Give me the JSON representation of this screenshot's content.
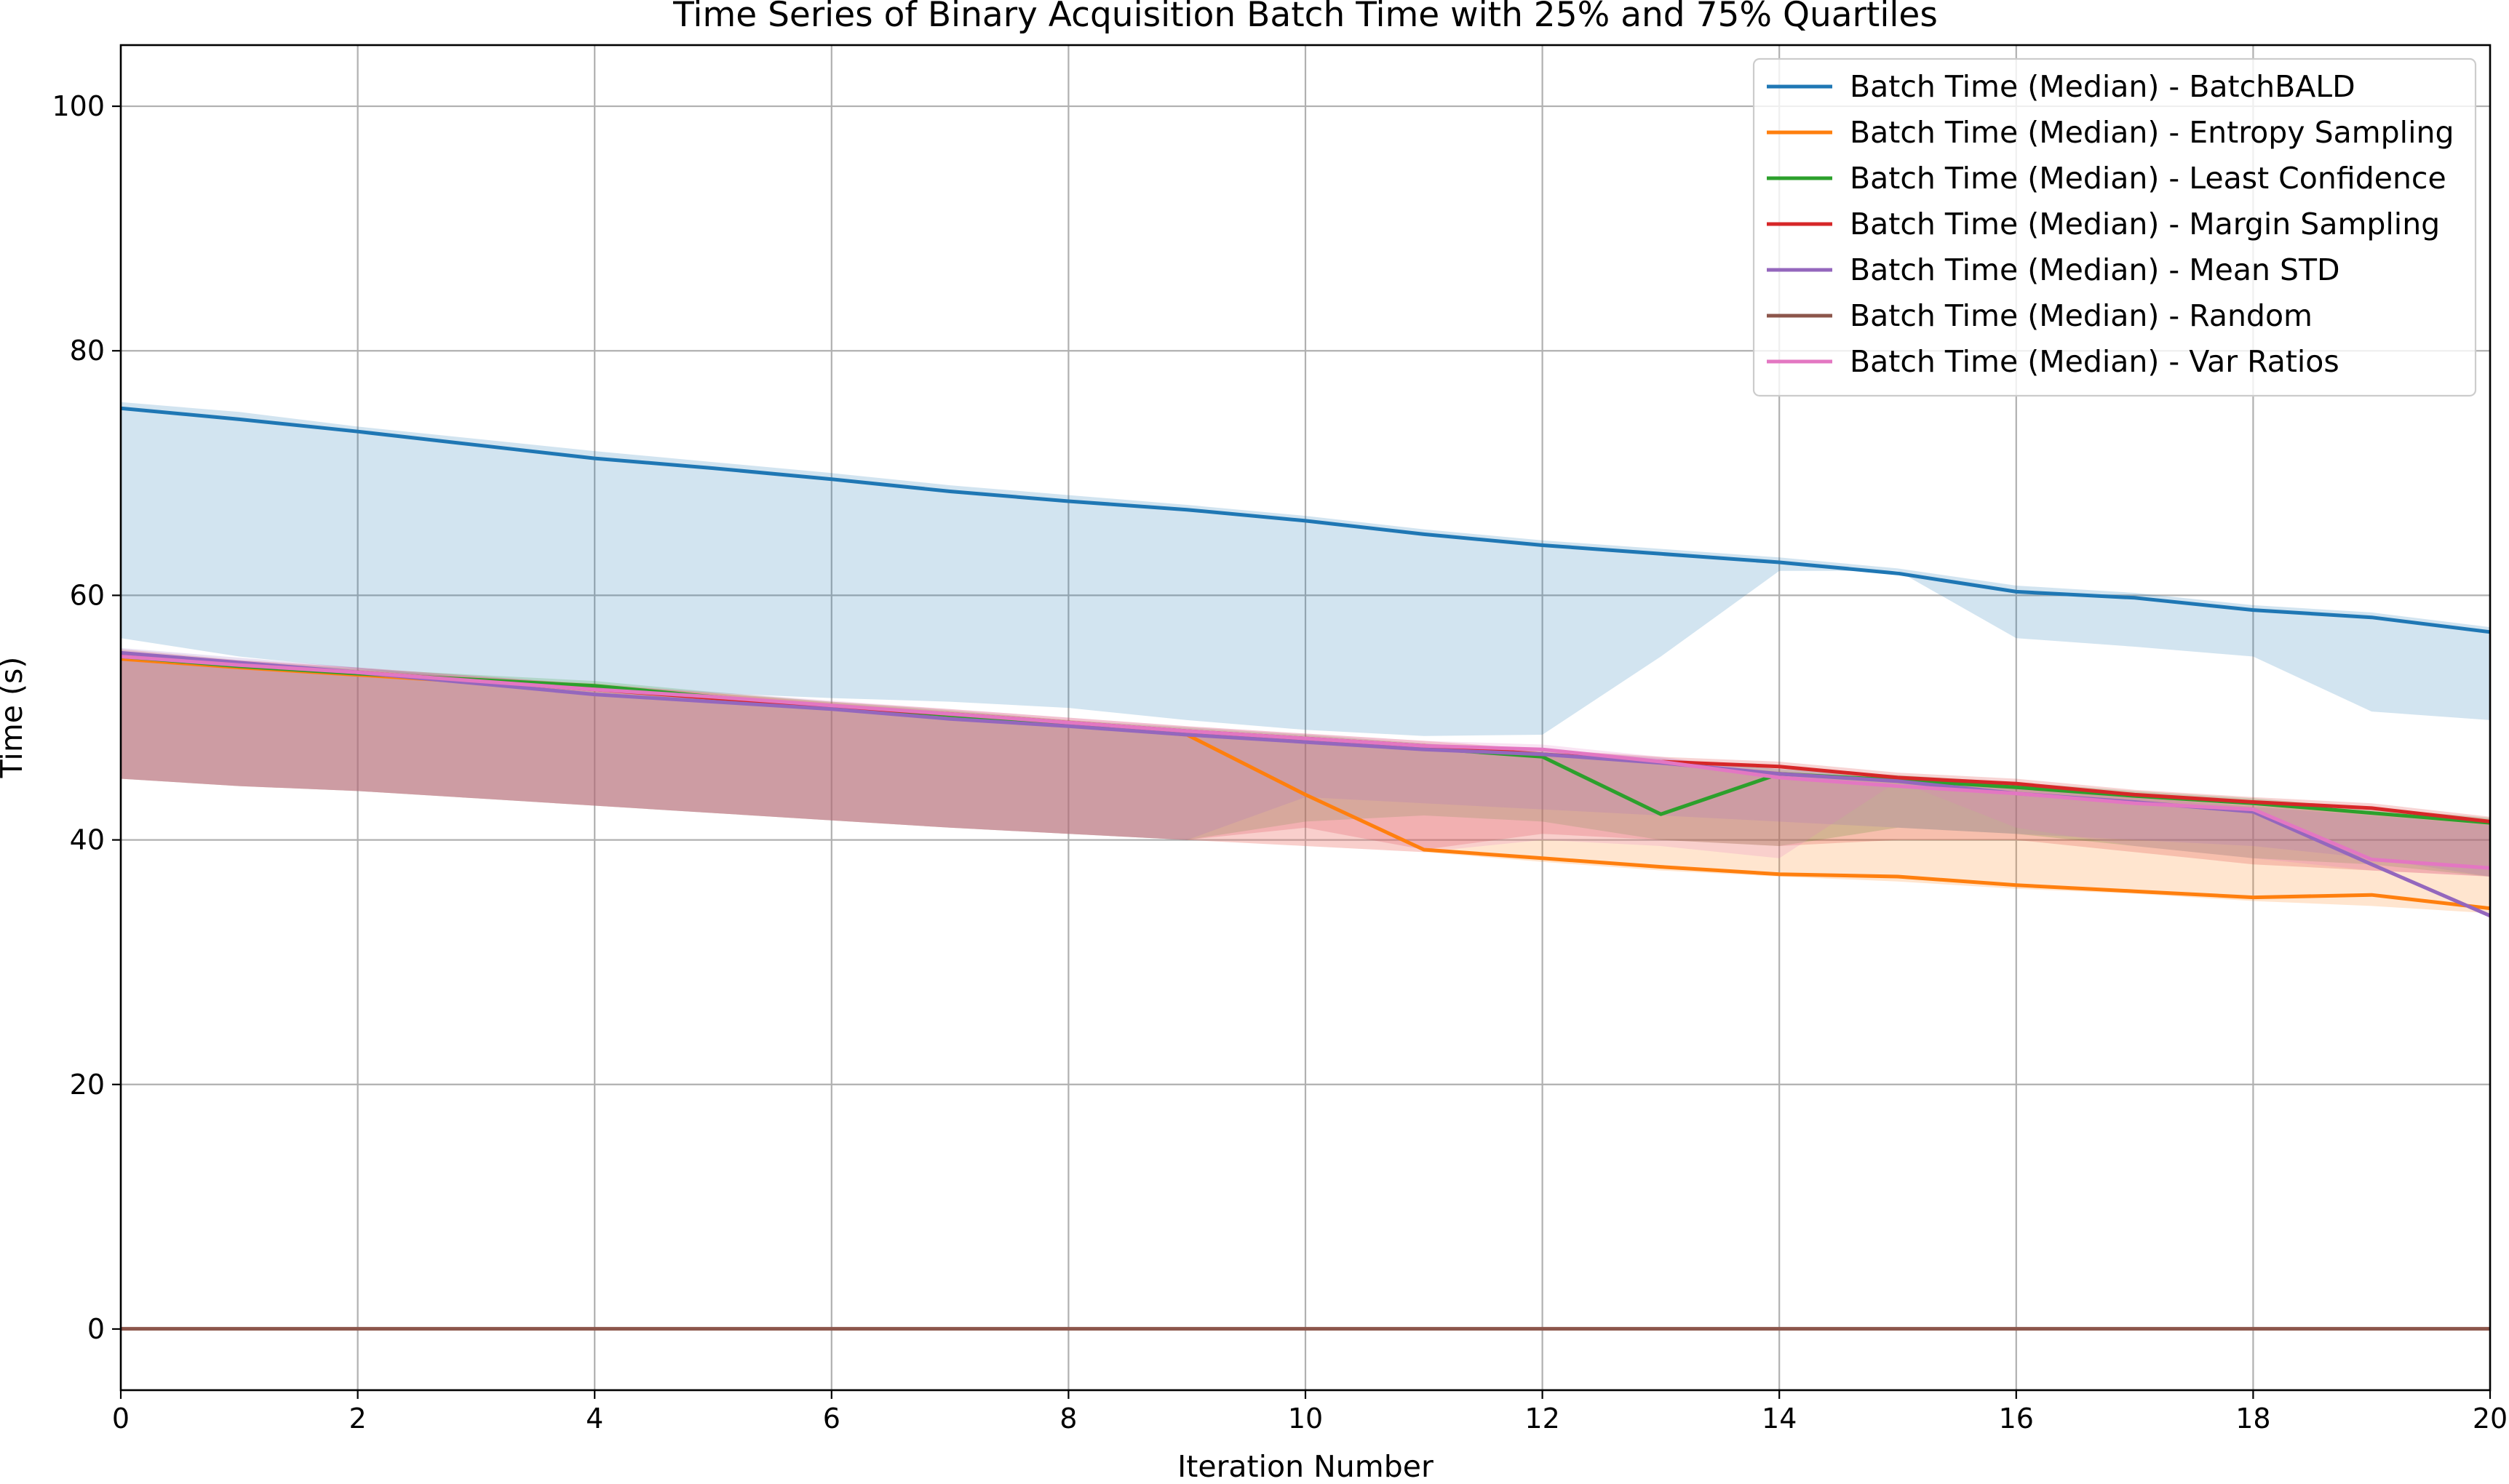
{
  "chart_data": {
    "type": "line",
    "title": "Time Series of Binary Acquisition Batch Time with 25% and 75% Quartiles",
    "xlabel": "Iteration Number",
    "ylabel": "Time (s)",
    "xlim": [
      0,
      20
    ],
    "ylim": [
      -5,
      105
    ],
    "xticks": [
      0,
      2,
      4,
      6,
      8,
      10,
      12,
      14,
      16,
      18,
      20
    ],
    "yticks": [
      0,
      20,
      40,
      60,
      80,
      100
    ],
    "grid": true,
    "legend_position": "top-right",
    "x": [
      0,
      1,
      2,
      3,
      4,
      5,
      6,
      7,
      8,
      9,
      10,
      11,
      12,
      13,
      14,
      15,
      16,
      17,
      18,
      19,
      20
    ],
    "series": [
      {
        "name": "Batch Time (Median) - BatchBALD",
        "color": "#1f77b4",
        "values": [
          75.3,
          74.4,
          73.4,
          72.3,
          71.2,
          70.4,
          69.5,
          68.5,
          67.7,
          67.0,
          66.1,
          65.0,
          64.1,
          63.4,
          62.7,
          61.8,
          60.3,
          59.8,
          58.8,
          58.2,
          57.0
        ],
        "q25": [
          56.5,
          55.0,
          54.0,
          53.0,
          52.5,
          52.0,
          51.6,
          51.3,
          50.8,
          49.8,
          49.0,
          48.5,
          48.6,
          55.0,
          62.0,
          62.0,
          56.5,
          55.8,
          55.0,
          50.5,
          49.8
        ],
        "q75": [
          75.8,
          75.0,
          73.8,
          72.8,
          71.8,
          70.9,
          70.0,
          69.0,
          68.2,
          67.4,
          66.5,
          65.4,
          64.5,
          63.8,
          63.1,
          62.2,
          60.8,
          60.2,
          59.2,
          58.6,
          57.4
        ]
      },
      {
        "name": "Batch Time (Median) - Entropy Sampling",
        "color": "#ff7f0e",
        "values": [
          54.8,
          54.1,
          53.5,
          52.9,
          52.4,
          51.6,
          50.8,
          50.1,
          49.4,
          48.6,
          43.7,
          39.2,
          38.5,
          37.8,
          37.2,
          37.0,
          36.3,
          35.8,
          35.3,
          35.5,
          34.4
        ],
        "q25": [
          45.0,
          44.4,
          44.0,
          43.4,
          42.8,
          42.2,
          41.6,
          41.0,
          40.5,
          40.0,
          39.5,
          39.0,
          38.2,
          37.5,
          37.0,
          36.6,
          36.0,
          35.6,
          35.0,
          34.6,
          34.0
        ],
        "q75": [
          55.2,
          54.5,
          53.9,
          53.3,
          52.8,
          52.0,
          51.2,
          50.5,
          49.8,
          49.0,
          48.3,
          47.8,
          47.0,
          46.3,
          45.6,
          45.0,
          44.3,
          43.5,
          42.8,
          42.2,
          41.5
        ]
      },
      {
        "name": "Batch Time (Median) - Least Confidence",
        "color": "#2ca02c",
        "values": [
          55.0,
          54.2,
          53.6,
          53.1,
          52.6,
          51.7,
          50.9,
          50.2,
          49.4,
          48.8,
          48.2,
          47.5,
          46.8,
          42.1,
          45.4,
          44.9,
          44.3,
          43.6,
          43.0,
          42.2,
          41.4
        ],
        "q25": [
          45.0,
          44.4,
          44.0,
          43.4,
          42.8,
          42.2,
          41.6,
          41.0,
          40.5,
          40.0,
          41.5,
          42.0,
          41.5,
          40.0,
          39.5,
          41.0,
          40.5,
          39.5,
          38.5,
          38.0,
          37.0
        ],
        "q75": [
          55.4,
          54.6,
          54.0,
          53.5,
          53.0,
          52.1,
          51.3,
          50.6,
          49.8,
          49.2,
          48.6,
          47.9,
          47.2,
          46.5,
          45.8,
          45.3,
          44.7,
          44.0,
          43.4,
          42.6,
          41.8
        ]
      },
      {
        "name": "Batch Time (Median) - Margin Sampling",
        "color": "#d62728",
        "values": [
          55.2,
          54.3,
          53.7,
          53.0,
          52.3,
          51.6,
          50.9,
          50.3,
          49.6,
          48.9,
          48.3,
          47.7,
          47.0,
          46.4,
          46.0,
          45.1,
          44.6,
          43.7,
          43.1,
          42.6,
          41.5
        ],
        "q25": [
          45.0,
          44.4,
          44.0,
          43.4,
          42.8,
          42.2,
          41.6,
          41.0,
          40.5,
          40.0,
          41.0,
          39.2,
          40.5,
          40.0,
          39.5,
          40.0,
          40.0,
          39.0,
          38.0,
          37.5,
          37.0
        ],
        "q75": [
          55.6,
          54.7,
          54.1,
          53.4,
          52.7,
          52.0,
          51.3,
          50.7,
          50.0,
          49.3,
          48.7,
          48.1,
          47.4,
          46.8,
          46.4,
          45.5,
          45.0,
          44.1,
          43.5,
          43.0,
          41.9
        ]
      },
      {
        "name": "Batch Time (Median) - Mean STD",
        "color": "#9467bd",
        "values": [
          55.3,
          54.5,
          53.7,
          52.8,
          51.9,
          51.3,
          50.7,
          49.9,
          49.3,
          48.6,
          48.0,
          47.4,
          47.0,
          46.3,
          45.4,
          44.8,
          43.8,
          43.1,
          42.3,
          38.0,
          33.8
        ],
        "q25": [
          45.0,
          44.4,
          44.0,
          43.4,
          42.8,
          42.2,
          41.6,
          41.0,
          40.5,
          40.0,
          43.5,
          43.0,
          42.5,
          42.0,
          41.5,
          41.0,
          40.5,
          40.0,
          39.5,
          38.5,
          37.0
        ],
        "q75": [
          55.7,
          54.9,
          54.1,
          53.2,
          52.3,
          51.7,
          51.1,
          50.3,
          49.7,
          49.0,
          48.4,
          47.8,
          47.4,
          46.7,
          45.8,
          45.2,
          44.2,
          43.5,
          42.7,
          42.0,
          41.2
        ]
      },
      {
        "name": "Batch Time (Median) - Random",
        "color": "#8c564b",
        "values": [
          0.02,
          0.02,
          0.02,
          0.02,
          0.02,
          0.02,
          0.02,
          0.02,
          0.02,
          0.02,
          0.02,
          0.02,
          0.02,
          0.02,
          0.02,
          0.02,
          0.02,
          0.02,
          0.02,
          0.02,
          0.02
        ],
        "q25": [
          0.01,
          0.01,
          0.01,
          0.01,
          0.01,
          0.01,
          0.01,
          0.01,
          0.01,
          0.01,
          0.01,
          0.01,
          0.01,
          0.01,
          0.01,
          0.01,
          0.01,
          0.01,
          0.01,
          0.01,
          0.01
        ],
        "q75": [
          0.03,
          0.03,
          0.03,
          0.03,
          0.03,
          0.03,
          0.03,
          0.03,
          0.03,
          0.03,
          0.03,
          0.03,
          0.03,
          0.03,
          0.03,
          0.03,
          0.03,
          0.03,
          0.03,
          0.03,
          0.03
        ]
      },
      {
        "name": "Batch Time (Median) - Var Ratios",
        "color": "#e377c2",
        "values": [
          55.0,
          54.3,
          53.7,
          53.0,
          52.3,
          51.7,
          51.0,
          50.3,
          49.6,
          48.9,
          48.3,
          47.7,
          47.4,
          46.4,
          45.1,
          44.4,
          43.8,
          43.0,
          42.5,
          38.4,
          37.7
        ],
        "q25": [
          45.0,
          44.4,
          44.0,
          43.4,
          42.8,
          42.2,
          41.6,
          41.0,
          40.5,
          40.0,
          39.5,
          39.0,
          40.0,
          39.5,
          38.5,
          44.8,
          41.0,
          39.5,
          38.5,
          37.5,
          37.0
        ],
        "q75": [
          55.4,
          54.7,
          54.1,
          53.4,
          52.7,
          52.1,
          51.4,
          50.7,
          50.0,
          49.3,
          48.7,
          48.1,
          47.8,
          46.8,
          45.5,
          44.9,
          44.2,
          43.4,
          42.9,
          42.2,
          41.5
        ]
      }
    ]
  }
}
